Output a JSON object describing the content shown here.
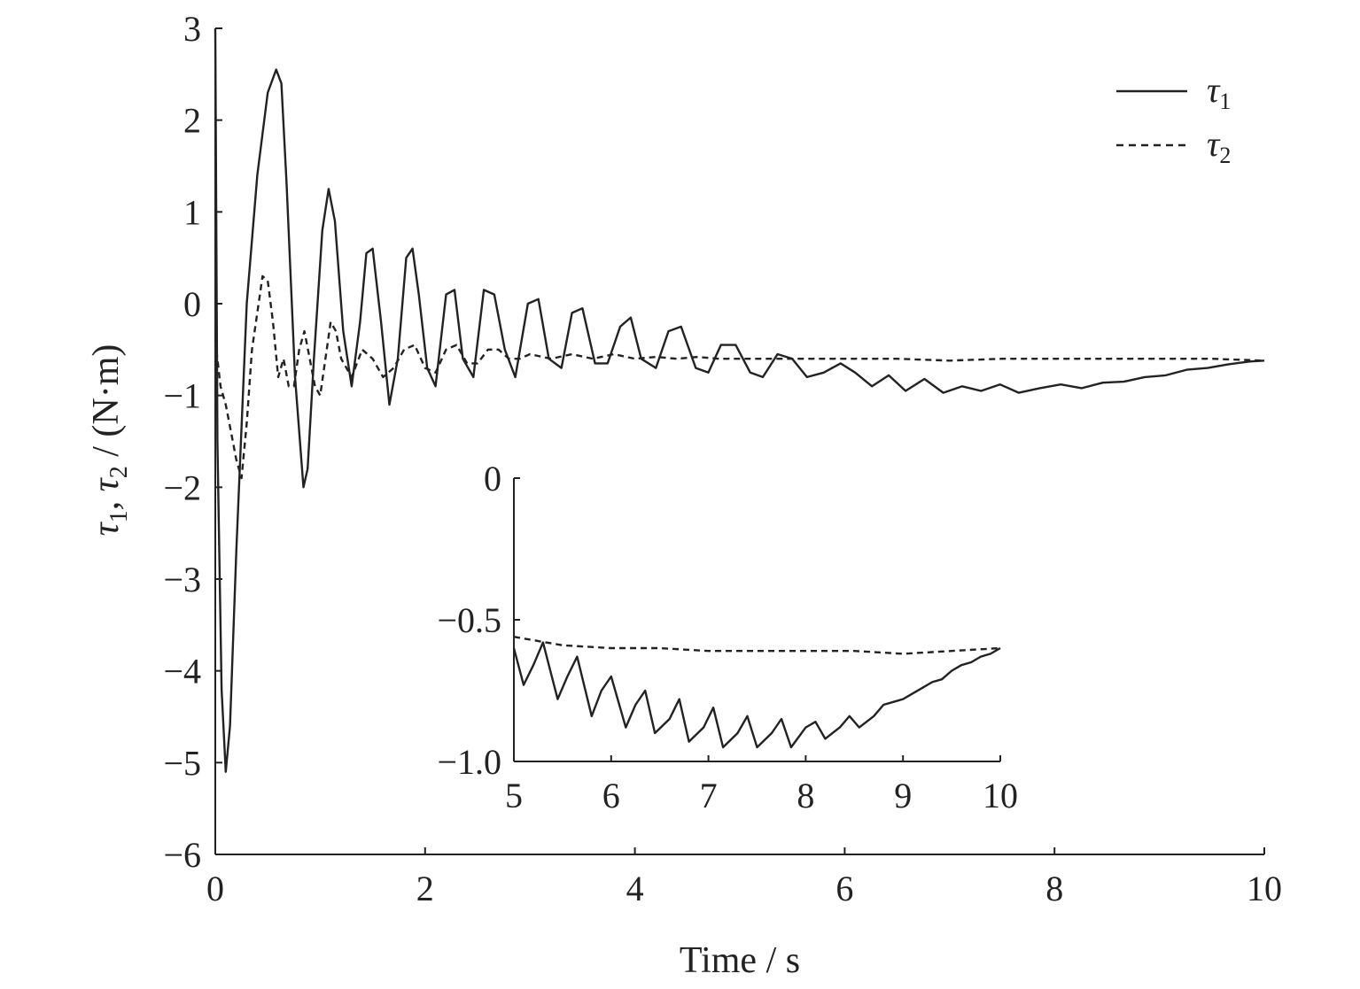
{
  "chart_data": [
    {
      "id": "main",
      "type": "line",
      "xlabel": "Time / s",
      "ylabel_parts": [
        "τ",
        "1",
        ", τ",
        "2",
        " / (N·m)"
      ],
      "xlim": [
        0,
        10
      ],
      "ylim": [
        -6,
        3
      ],
      "xticks": [
        0,
        2,
        4,
        6,
        8,
        10
      ],
      "yticks": [
        -6,
        -5,
        -4,
        -3,
        -2,
        -1,
        0,
        1,
        2,
        3
      ],
      "xtick_labels": [
        "0",
        "2",
        "4",
        "6",
        "8",
        "10"
      ],
      "ytick_labels": [
        "−6",
        "−5",
        "−4",
        "−3",
        "−2",
        "−1",
        "0",
        "1",
        "2",
        "3"
      ],
      "grid": false,
      "legend_position": "top-right",
      "series": [
        {
          "name": "τ1",
          "label_main": "τ",
          "label_sub": "1",
          "style": "solid",
          "x": [
            0,
            0.02,
            0.06,
            0.1,
            0.14,
            0.2,
            0.3,
            0.4,
            0.5,
            0.58,
            0.63,
            0.68,
            0.76,
            0.84,
            0.88,
            0.94,
            1.02,
            1.08,
            1.14,
            1.22,
            1.3,
            1.38,
            1.44,
            1.5,
            1.58,
            1.66,
            1.74,
            1.82,
            1.88,
            1.94,
            2.02,
            2.1,
            2.2,
            2.28,
            2.36,
            2.46,
            2.56,
            2.66,
            2.76,
            2.86,
            2.98,
            3.08,
            3.18,
            3.3,
            3.4,
            3.5,
            3.62,
            3.74,
            3.86,
            3.96,
            4.06,
            4.2,
            4.32,
            4.44,
            4.58,
            4.7,
            4.82,
            4.96,
            5.1,
            5.22,
            5.36,
            5.5,
            5.64,
            5.8,
            5.96,
            6.1,
            6.26,
            6.42,
            6.58,
            6.76,
            6.94,
            7.12,
            7.3,
            7.48,
            7.66,
            7.86,
            8.06,
            8.26,
            8.46,
            8.66,
            8.86,
            9.06,
            9.26,
            9.46,
            9.66,
            9.86,
            10
          ],
          "y": [
            3.0,
            -1.5,
            -4.2,
            -5.1,
            -4.6,
            -2.7,
            0.0,
            1.4,
            2.3,
            2.55,
            2.4,
            1.3,
            -0.8,
            -2.0,
            -1.8,
            -0.6,
            0.8,
            1.25,
            0.9,
            -0.3,
            -0.9,
            -0.2,
            0.55,
            0.6,
            -0.2,
            -1.1,
            -0.6,
            0.5,
            0.6,
            0.1,
            -0.7,
            -0.9,
            0.1,
            0.15,
            -0.6,
            -0.8,
            0.15,
            0.1,
            -0.5,
            -0.8,
            0.0,
            0.05,
            -0.6,
            -0.7,
            -0.1,
            -0.05,
            -0.65,
            -0.65,
            -0.25,
            -0.15,
            -0.6,
            -0.7,
            -0.3,
            -0.25,
            -0.7,
            -0.75,
            -0.45,
            -0.45,
            -0.75,
            -0.8,
            -0.55,
            -0.6,
            -0.8,
            -0.75,
            -0.65,
            -0.75,
            -0.9,
            -0.78,
            -0.95,
            -0.82,
            -0.97,
            -0.9,
            -0.95,
            -0.88,
            -0.97,
            -0.92,
            -0.88,
            -0.92,
            -0.86,
            -0.85,
            -0.8,
            -0.78,
            -0.72,
            -0.7,
            -0.66,
            -0.63,
            -0.62
          ]
        },
        {
          "name": "τ2",
          "label_main": "τ",
          "label_sub": "2",
          "style": "dashed",
          "x": [
            0,
            0.05,
            0.1,
            0.15,
            0.2,
            0.25,
            0.3,
            0.35,
            0.4,
            0.45,
            0.5,
            0.55,
            0.6,
            0.65,
            0.7,
            0.75,
            0.8,
            0.85,
            0.9,
            0.95,
            1.0,
            1.05,
            1.1,
            1.15,
            1.2,
            1.3,
            1.4,
            1.5,
            1.6,
            1.7,
            1.8,
            1.9,
            2.0,
            2.1,
            2.2,
            2.3,
            2.4,
            2.5,
            2.6,
            2.7,
            2.8,
            2.9,
            3.0,
            3.2,
            3.4,
            3.6,
            3.8,
            4.0,
            4.2,
            4.4,
            4.6,
            4.8,
            5.0,
            5.5,
            6.0,
            6.5,
            7.0,
            7.5,
            8.0,
            8.5,
            9.0,
            9.5,
            10
          ],
          "y": [
            -0.4,
            -0.9,
            -1.1,
            -1.4,
            -1.7,
            -1.9,
            -1.3,
            -0.5,
            -0.1,
            0.3,
            0.25,
            -0.2,
            -0.8,
            -0.6,
            -0.9,
            -0.9,
            -0.5,
            -0.3,
            -0.6,
            -0.9,
            -1.0,
            -0.6,
            -0.2,
            -0.3,
            -0.6,
            -0.8,
            -0.5,
            -0.6,
            -0.8,
            -0.7,
            -0.5,
            -0.45,
            -0.7,
            -0.75,
            -0.5,
            -0.45,
            -0.65,
            -0.65,
            -0.5,
            -0.5,
            -0.6,
            -0.6,
            -0.55,
            -0.6,
            -0.55,
            -0.6,
            -0.55,
            -0.6,
            -0.58,
            -0.6,
            -0.58,
            -0.6,
            -0.6,
            -0.6,
            -0.6,
            -0.6,
            -0.62,
            -0.6,
            -0.6,
            -0.6,
            -0.6,
            -0.6,
            -0.62
          ]
        }
      ]
    },
    {
      "id": "inset",
      "type": "line",
      "xlim": [
        5,
        10
      ],
      "ylim": [
        -1.0,
        0
      ],
      "xticks": [
        5,
        6,
        7,
        8,
        9,
        10
      ],
      "yticks": [
        -1.0,
        -0.5,
        0
      ],
      "xtick_labels": [
        "5",
        "6",
        "7",
        "8",
        "9",
        "10"
      ],
      "ytick_labels": [
        "−1.0",
        "−0.5",
        "0"
      ],
      "grid": false,
      "series": [
        {
          "name": "τ1",
          "style": "solid",
          "x": [
            5.0,
            5.1,
            5.2,
            5.3,
            5.45,
            5.55,
            5.65,
            5.8,
            5.9,
            6.0,
            6.15,
            6.25,
            6.35,
            6.45,
            6.6,
            6.7,
            6.8,
            6.95,
            7.05,
            7.15,
            7.3,
            7.4,
            7.5,
            7.65,
            7.75,
            7.85,
            8.0,
            8.1,
            8.2,
            8.35,
            8.45,
            8.55,
            8.7,
            8.8,
            8.9,
            9.0,
            9.1,
            9.2,
            9.3,
            9.4,
            9.5,
            9.6,
            9.7,
            9.8,
            9.9,
            10.0
          ],
          "y": [
            -0.6,
            -0.73,
            -0.66,
            -0.58,
            -0.78,
            -0.7,
            -0.63,
            -0.84,
            -0.75,
            -0.7,
            -0.88,
            -0.8,
            -0.75,
            -0.9,
            -0.85,
            -0.78,
            -0.93,
            -0.88,
            -0.81,
            -0.95,
            -0.9,
            -0.84,
            -0.95,
            -0.9,
            -0.85,
            -0.95,
            -0.88,
            -0.86,
            -0.92,
            -0.88,
            -0.84,
            -0.88,
            -0.84,
            -0.8,
            -0.79,
            -0.78,
            -0.76,
            -0.74,
            -0.72,
            -0.71,
            -0.68,
            -0.66,
            -0.65,
            -0.63,
            -0.62,
            -0.6
          ]
        },
        {
          "name": "τ2",
          "style": "dashed",
          "x": [
            5.0,
            5.5,
            6.0,
            6.5,
            7.0,
            7.5,
            8.0,
            8.5,
            9.0,
            9.5,
            10.0
          ],
          "y": [
            -0.56,
            -0.59,
            -0.6,
            -0.6,
            -0.61,
            -0.61,
            -0.61,
            -0.61,
            -0.62,
            -0.61,
            -0.6
          ]
        }
      ]
    }
  ]
}
